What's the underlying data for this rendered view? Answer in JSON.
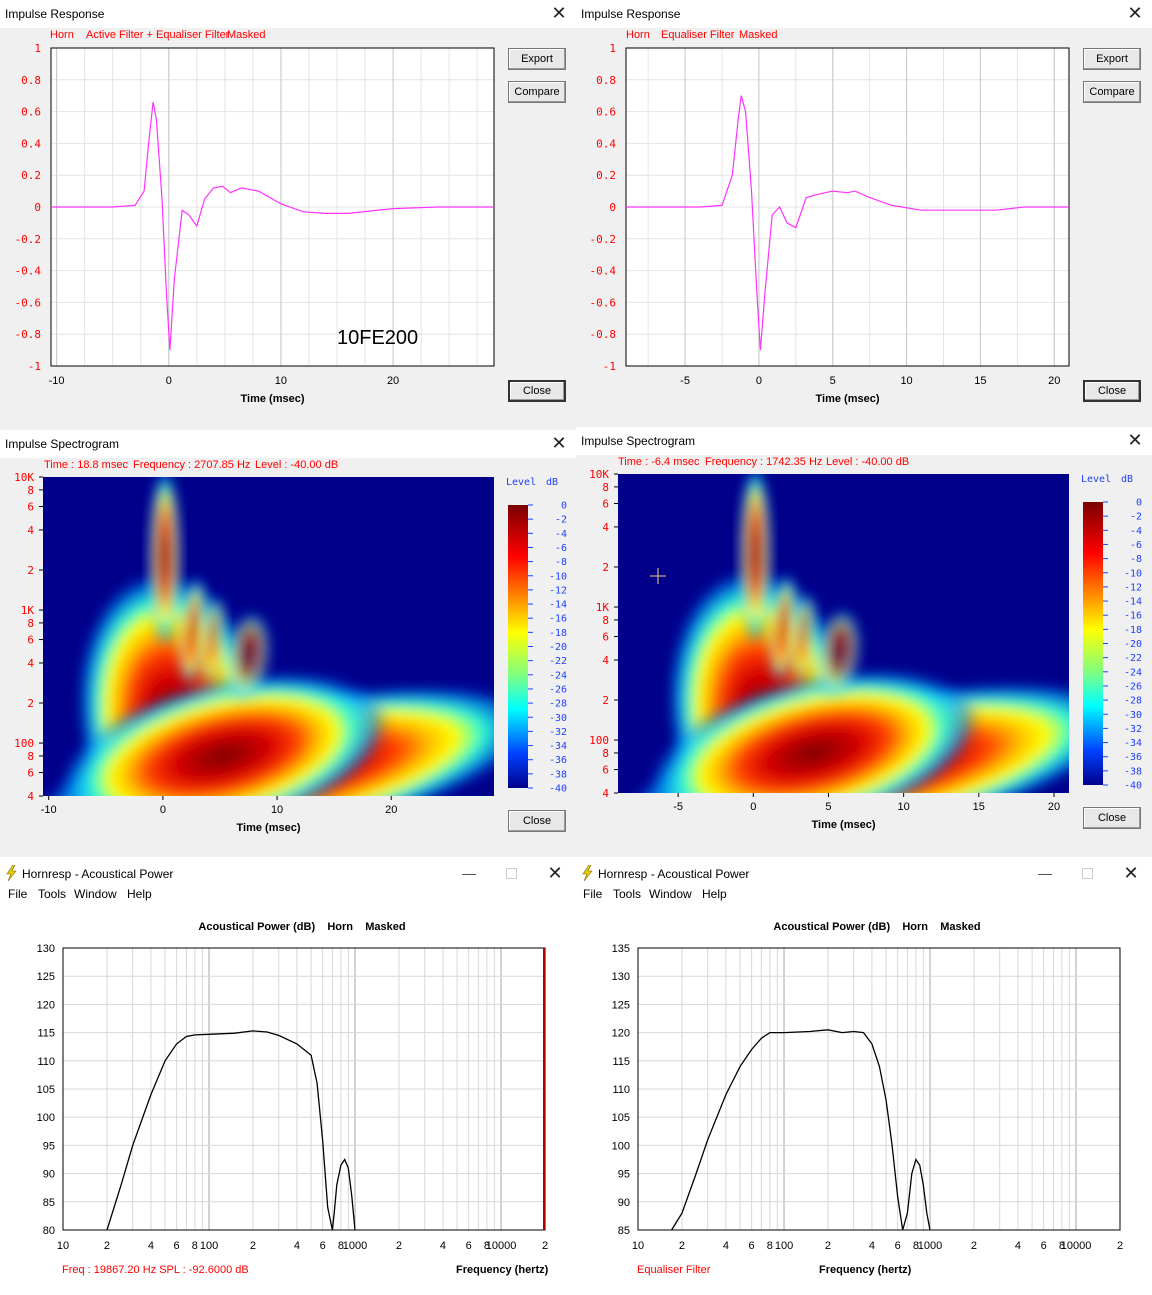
{
  "ir_left": {
    "title": "Impulse Response",
    "status": [
      "Horn",
      "Active Filter + Equaliser Filter",
      "Masked"
    ],
    "export_label": "Export",
    "compare_label": "Compare",
    "close_label": "Close",
    "annotation": "10FE200",
    "chart_data": {
      "type": "line",
      "xlabel": "Time (msec)",
      "ylabel": "",
      "xlim": [
        -10.5,
        29
      ],
      "ylim": [
        -1,
        1
      ],
      "xticks": [
        -10,
        0,
        10,
        20
      ],
      "yticks": [
        1,
        0.8,
        0.6,
        0.4,
        0.2,
        0,
        -0.2,
        -0.4,
        -0.6,
        -0.8,
        -1
      ],
      "color": "#ff33ff",
      "x": [
        -10.5,
        -5,
        -3,
        -2.2,
        -1.8,
        -1.4,
        -1.1,
        -0.6,
        -0.2,
        0.1,
        0.5,
        1.2,
        1.8,
        2.5,
        3.2,
        4,
        4.8,
        5.5,
        6.5,
        8,
        10,
        12,
        14,
        16,
        20,
        24,
        29
      ],
      "y": [
        0,
        0,
        0.01,
        0.1,
        0.4,
        0.66,
        0.55,
        0.05,
        -0.55,
        -0.9,
        -0.45,
        -0.02,
        -0.05,
        -0.12,
        0.05,
        0.12,
        0.13,
        0.09,
        0.12,
        0.1,
        0.02,
        -0.03,
        -0.04,
        -0.04,
        -0.01,
        0,
        0
      ]
    }
  },
  "ir_right": {
    "title": "Impulse Response",
    "status": [
      "Horn",
      "Equaliser Filter",
      "Masked"
    ],
    "export_label": "Export",
    "compare_label": "Compare",
    "close_label": "Close",
    "chart_data": {
      "type": "line",
      "xlabel": "Time (msec)",
      "ylabel": "",
      "xlim": [
        -9,
        21
      ],
      "ylim": [
        -1,
        1
      ],
      "xticks": [
        -5,
        0,
        5,
        10,
        15,
        20
      ],
      "yticks": [
        1,
        0.8,
        0.6,
        0.4,
        0.2,
        0,
        -0.2,
        -0.4,
        -0.6,
        -0.8,
        -1
      ],
      "color": "#ff33ff",
      "x": [
        -9,
        -4,
        -2.5,
        -1.8,
        -1.4,
        -1.2,
        -0.9,
        -0.5,
        -0.1,
        0.1,
        0.4,
        0.9,
        1.4,
        1.9,
        2.5,
        3.2,
        4,
        5,
        6,
        6.5,
        7.5,
        9,
        11,
        13,
        16,
        18,
        21
      ],
      "y": [
        0,
        0,
        0.01,
        0.2,
        0.55,
        0.7,
        0.6,
        0.1,
        -0.6,
        -0.9,
        -0.55,
        -0.05,
        0,
        -0.1,
        -0.13,
        0.06,
        0.08,
        0.1,
        0.09,
        0.1,
        0.06,
        0.01,
        -0.02,
        -0.02,
        -0.02,
        0,
        0
      ]
    }
  },
  "spec_left": {
    "title": "Impulse Spectrogram",
    "status": [
      "Time : 18.8 msec",
      "Frequency : 2707.85 Hz",
      "Level : -40.00 dB"
    ],
    "close_label": "Close",
    "chart_data": {
      "type": "heatmap",
      "xlabel": "Time (msec)",
      "ylabel": "",
      "xlim": [
        -10.5,
        29
      ],
      "ylim": [
        40,
        10000
      ],
      "y_scale": "log",
      "xticks": [
        -10,
        0,
        10,
        20
      ],
      "yticks": [
        "10K",
        "8",
        "6",
        "4",
        "2",
        "1K",
        "8",
        "6",
        "4",
        "2",
        "100",
        "8",
        "6",
        "4"
      ],
      "colorbar_label": "Level",
      "colorbar_unit": "dB",
      "colorbar_ticks": [
        "0",
        "-2",
        "-4",
        "-6",
        "-8",
        "-10",
        "-12",
        "-14",
        "-16",
        "-18",
        "-20",
        "-22",
        "-24",
        "-26",
        "-28",
        "-30",
        "-32",
        "-34",
        "-36",
        "-38",
        "-40"
      ]
    }
  },
  "spec_right": {
    "title": "Impulse Spectrogram",
    "status": [
      "Time : -6.4 msec",
      "Frequency : 1742.35 Hz",
      "Level : -40.00 dB"
    ],
    "close_label": "Close",
    "chart_data": {
      "type": "heatmap",
      "xlabel": "Time (msec)",
      "ylabel": "",
      "xlim": [
        -9,
        21
      ],
      "ylim": [
        40,
        10000
      ],
      "y_scale": "log",
      "xticks": [
        -5,
        0,
        5,
        10,
        15,
        20
      ],
      "yticks": [
        "10K",
        "8",
        "6",
        "4",
        "2",
        "1K",
        "8",
        "6",
        "4",
        "2",
        "100",
        "8",
        "6",
        "4"
      ],
      "colorbar_label": "Level",
      "colorbar_unit": "dB",
      "colorbar_ticks": [
        "0",
        "-2",
        "-4",
        "-6",
        "-8",
        "-10",
        "-12",
        "-14",
        "-16",
        "-18",
        "-20",
        "-22",
        "-24",
        "-26",
        "-28",
        "-30",
        "-32",
        "-34",
        "-36",
        "-38",
        "-40"
      ]
    }
  },
  "hr_left": {
    "title": "Hornresp - Acoustical Power",
    "menu": [
      "File",
      "Tools",
      "Window",
      "Help"
    ],
    "chart_title": "Acoustical Power (dB)    Horn    Masked",
    "footer_left": "Freq : 19867.20 Hz    SPL : -92.6000 dB",
    "footer_right": "Frequency (hertz)",
    "chart_data": {
      "type": "line",
      "title": "Acoustical Power (dB)    Horn    Masked",
      "xlabel": "Frequency (hertz)",
      "x_scale": "log",
      "xlim": [
        10,
        20000
      ],
      "ylim": [
        80,
        130
      ],
      "yticks": [
        130,
        125,
        120,
        115,
        110,
        105,
        100,
        95,
        90,
        85,
        80
      ],
      "xticks": [
        "10",
        "2",
        "4",
        "6",
        "8",
        "100",
        "2",
        "4",
        "6",
        "8",
        "1000",
        "2",
        "4",
        "6",
        "8",
        "10000",
        "2"
      ],
      "x": [
        20,
        25,
        30,
        40,
        50,
        60,
        70,
        80,
        100,
        150,
        200,
        250,
        300,
        400,
        500,
        550,
        600,
        650,
        700,
        720,
        750,
        800,
        850,
        900,
        950,
        1000
      ],
      "y": [
        80,
        88,
        95,
        104,
        110,
        113,
        114.3,
        114.6,
        114.7,
        114.9,
        115.3,
        115.1,
        114.5,
        113,
        111,
        106,
        96,
        84,
        80,
        83,
        88,
        91.5,
        92.5,
        91,
        86,
        80
      ]
    }
  },
  "hr_right": {
    "title": "Hornresp - Acoustical Power",
    "menu": [
      "File",
      "Tools",
      "Window",
      "Help"
    ],
    "chart_title": "Acoustical Power (dB)    Horn    Masked",
    "footer_left": "Equaliser Filter",
    "footer_right": "Frequency (hertz)",
    "chart_data": {
      "type": "line",
      "title": "Acoustical Power (dB)    Horn    Masked",
      "xlabel": "Frequency (hertz)",
      "x_scale": "log",
      "xlim": [
        10,
        20000
      ],
      "ylim": [
        85,
        135
      ],
      "yticks": [
        135,
        130,
        125,
        120,
        115,
        110,
        105,
        100,
        95,
        90,
        85
      ],
      "xticks": [
        "10",
        "2",
        "4",
        "6",
        "8",
        "100",
        "2",
        "4",
        "6",
        "8",
        "1000",
        "2",
        "4",
        "6",
        "8",
        "10000",
        "2"
      ],
      "x": [
        17,
        20,
        25,
        30,
        40,
        50,
        60,
        70,
        80,
        100,
        150,
        200,
        250,
        300,
        350,
        400,
        450,
        500,
        550,
        600,
        650,
        700,
        750,
        800,
        850,
        900,
        950,
        1000
      ],
      "y": [
        85,
        88,
        95,
        101,
        109,
        114,
        117,
        119,
        120,
        120,
        120.2,
        120.5,
        120,
        120.2,
        120,
        118,
        114,
        108,
        100,
        91,
        85,
        88,
        95,
        97.5,
        96.5,
        93,
        88,
        85
      ]
    }
  }
}
